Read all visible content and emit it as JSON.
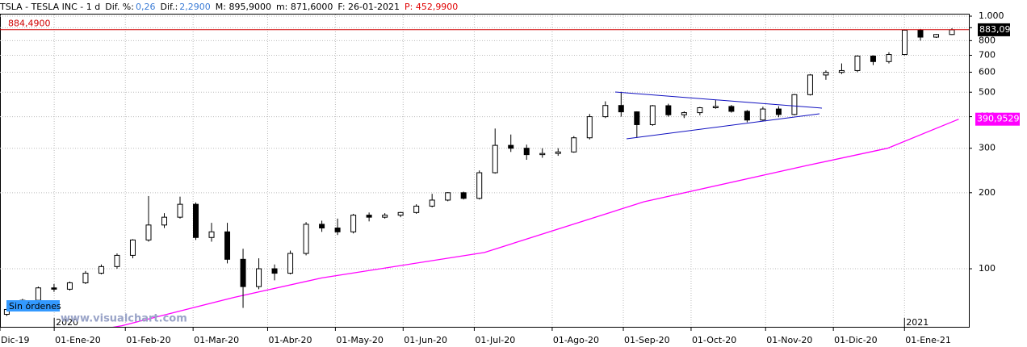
{
  "header": {
    "symbol": "TSLA - TESLA INC - 1 d",
    "dif_pct_label": "Dif. %:",
    "dif_pct": "0,26",
    "dif_label": "Dif.:",
    "dif": "2,2900",
    "max": "M: 895,9000",
    "min": "m: 871,6000",
    "date": "F: 26-01-2021",
    "prev": "P: 452,9900"
  },
  "footer": {
    "orders": "Sin órdenes",
    "watermark": "www.visualchart.com"
  },
  "chart_data": {
    "type": "candlestick",
    "log_scale": true,
    "grid": true,
    "xlim": [
      0,
      286
    ],
    "ylim": [
      58.9,
      1015
    ],
    "xticks": [
      {
        "value": 0,
        "label": "Dic-19"
      },
      {
        "value": 16,
        "label": "01-Ene-20"
      },
      {
        "value": 37,
        "label": "01-Feb-20"
      },
      {
        "value": 57,
        "label": "01-Mar-20"
      },
      {
        "value": 79,
        "label": "01-Abr-20"
      },
      {
        "value": 99,
        "label": "01-May-20"
      },
      {
        "value": 119,
        "label": "01-Jun-20"
      },
      {
        "value": 140,
        "label": "01-Jul-20"
      },
      {
        "value": 163,
        "label": "01-Ago-20"
      },
      {
        "value": 184,
        "label": "01-Sep-20"
      },
      {
        "value": 204,
        "label": "01-Oct-20"
      },
      {
        "value": 226,
        "label": "01-Nov-20"
      },
      {
        "value": 246,
        "label": "01-Dic-20"
      },
      {
        "value": 267,
        "label": "01-Ene-21"
      }
    ],
    "year_ticks": [
      {
        "value": 16,
        "label": "2020"
      },
      {
        "value": 267,
        "label": "2021"
      }
    ],
    "yticks": [
      100,
      200,
      300,
      400,
      500,
      600,
      700,
      800,
      900,
      {
        "value": 1000,
        "label": "1.000"
      }
    ],
    "up_color": "#ffffff",
    "down_color": "#000000",
    "x": [
      2,
      6.65,
      11.3,
      15.95,
      20.6,
      25.25,
      29.9,
      34.55,
      39.2,
      43.85,
      48.5,
      53.15,
      57.8,
      62.45,
      67.1,
      71.75,
      76.4,
      81.05,
      85.7,
      90.35,
      95,
      99.65,
      104.3,
      108.95,
      113.6,
      118.25,
      122.9,
      127.55,
      132.2,
      136.85,
      141.5,
      146.15,
      150.8,
      155.45,
      160.1,
      164.75,
      169.4,
      174.05,
      178.7,
      183.35,
      188,
      192.65,
      197.3,
      201.95,
      206.6,
      211.25,
      215.9,
      220.55,
      225.2,
      229.85,
      234.5,
      239.15,
      243.8,
      248.45,
      253.1,
      257.75,
      262.4,
      267.05,
      271.7,
      276.35,
      281
    ],
    "open": [
      66,
      69,
      75,
      84,
      83,
      88,
      96,
      102,
      113,
      130,
      149,
      160,
      180,
      133,
      140,
      109,
      85,
      100,
      96,
      115,
      150,
      145,
      140,
      163,
      160,
      163,
      167,
      177,
      187,
      200,
      190,
      240,
      308,
      300,
      283,
      286,
      290,
      330,
      400,
      443,
      418,
      372,
      442,
      407,
      415,
      434,
      439,
      420,
      388,
      429,
      408,
      489,
      585,
      599,
      609,
      695,
      661,
      705,
      880,
      826,
      846
    ],
    "high": [
      70,
      76,
      85,
      87,
      89,
      98,
      104,
      115,
      131,
      194,
      166,
      193,
      183,
      152,
      152,
      120,
      110,
      104,
      118,
      153,
      155,
      158,
      165,
      167,
      166,
      168,
      180,
      198,
      201,
      202,
      245,
      359,
      340,
      310,
      300,
      300,
      335,
      410,
      460,
      502,
      420,
      445,
      450,
      420,
      437,
      465,
      445,
      425,
      438,
      440,
      492,
      590,
      610,
      650,
      700,
      700,
      720,
      885,
      890,
      850,
      896
    ],
    "low": [
      65,
      68,
      74,
      81,
      82,
      87,
      95,
      100,
      110,
      128,
      145,
      158,
      130,
      128,
      105,
      70,
      83,
      90,
      95,
      113,
      140,
      136,
      138,
      154,
      158,
      160,
      165,
      175,
      185,
      188,
      188,
      238,
      290,
      270,
      275,
      280,
      288,
      325,
      395,
      400,
      330,
      368,
      400,
      395,
      405,
      430,
      415,
      380,
      385,
      398,
      405,
      485,
      560,
      590,
      600,
      640,
      650,
      700,
      800,
      820,
      842
    ],
    "close": [
      69,
      75,
      84,
      83,
      88,
      96,
      102,
      113,
      130,
      149,
      160,
      180,
      133,
      140,
      109,
      85,
      100,
      96,
      115,
      150,
      145,
      140,
      163,
      160,
      163,
      167,
      177,
      187,
      200,
      190,
      240,
      308,
      300,
      283,
      286,
      290,
      330,
      400,
      443,
      418,
      372,
      442,
      407,
      415,
      434,
      439,
      420,
      388,
      429,
      408,
      489,
      585,
      599,
      609,
      695,
      661,
      705,
      880,
      826,
      846,
      883.09
    ],
    "moving_average": {
      "color": "#ff00ff",
      "x": [
        28,
        36,
        69,
        95,
        143,
        190,
        238,
        262,
        283
      ],
      "values": [
        57,
        59.5,
        77,
        92,
        116,
        184,
        256,
        300,
        390.9529
      ]
    },
    "level_line": {
      "value": 884.49,
      "label": "884,4900",
      "color": "#d00000"
    },
    "last_price": {
      "value": 883.09,
      "label": "883,09"
    },
    "ma_last": {
      "value": 390.9529,
      "label": "390,9529"
    }
  }
}
